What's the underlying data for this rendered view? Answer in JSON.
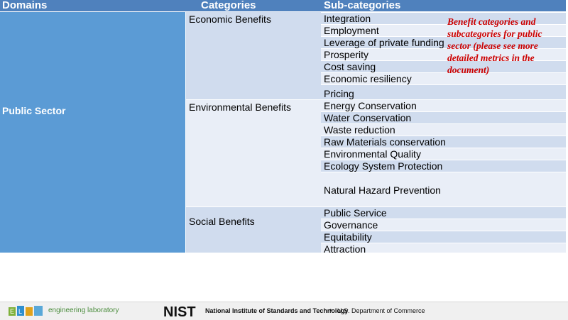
{
  "header": {
    "domains": "Domains",
    "categories": "Categories",
    "subcategories": "Sub-categories"
  },
  "domain": "Public Sector",
  "categories": [
    {
      "name": "Economic Benefits",
      "subcategories": [
        "Integration",
        "Employment",
        "Leverage of private funding",
        "Prosperity",
        "Cost saving",
        "Economic resiliency",
        "Pricing"
      ]
    },
    {
      "name": "Environmental Benefits",
      "subcategories": [
        "Energy Conservation",
        "Water Conservation",
        "Waste reduction",
        "Raw Materials conservation",
        "Environmental Quality",
        "Ecology System Protection",
        "Natural Hazard Prevention"
      ]
    },
    {
      "name": "Social Benefits",
      "subcategories": [
        "Public Service",
        "Governance",
        "Equitability",
        "Attraction"
      ]
    }
  ],
  "note": "Benefit categories and subcategories for public sector (please see more detailed metrics in the document)",
  "footer": {
    "lab": "engineering laboratory",
    "nist_logo": "NIST",
    "nist": "National Institute of Standards and Technology",
    "separator": "•",
    "dept": "U.S. Department of Commerce"
  }
}
